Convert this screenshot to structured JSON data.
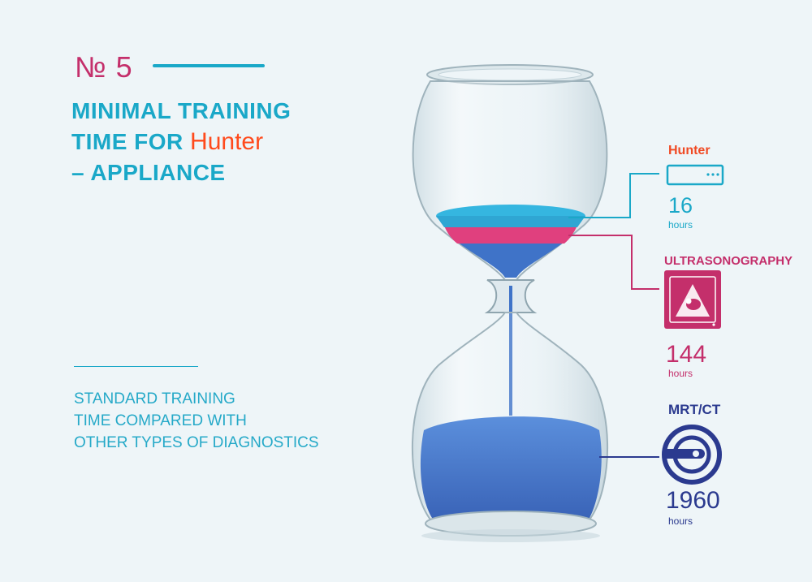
{
  "header": {
    "number": "№ 5",
    "title_line1": "MINIMAL TRAINING",
    "title_line2_prefix": "TIME FOR ",
    "title_brand": "Hunter",
    "title_line3": "– APPLIANCE"
  },
  "subtitle": {
    "line1": "STANDARD TRAINING",
    "line2": "TIME COMPARED WITH",
    "line3": "OTHER TYPES OF DIAGNOSTICS"
  },
  "comparison": [
    {
      "label": "Hunter",
      "value": "16",
      "unit": "hours",
      "color": "#f04a24",
      "value_color": "#1aa8c8",
      "icon": "device-icon"
    },
    {
      "label": "ULTRASONOGRAPHY",
      "value": "144",
      "unit": "hours",
      "color": "#c42f6b",
      "icon": "ultrasound-icon"
    },
    {
      "label": "MRT/CT",
      "value": "1960",
      "unit": "hours",
      "color": "#2b3a8f",
      "icon": "mri-scanner-icon"
    }
  ],
  "colors": {
    "accent": "#1aa8c8",
    "magenta": "#c42f6b",
    "navy": "#2b3a8f",
    "brand_orange": "#ff4a1c",
    "sand_cyan": "#35b6e0",
    "sand_pink": "#e0407e",
    "sand_blue": "#3f73c8"
  }
}
